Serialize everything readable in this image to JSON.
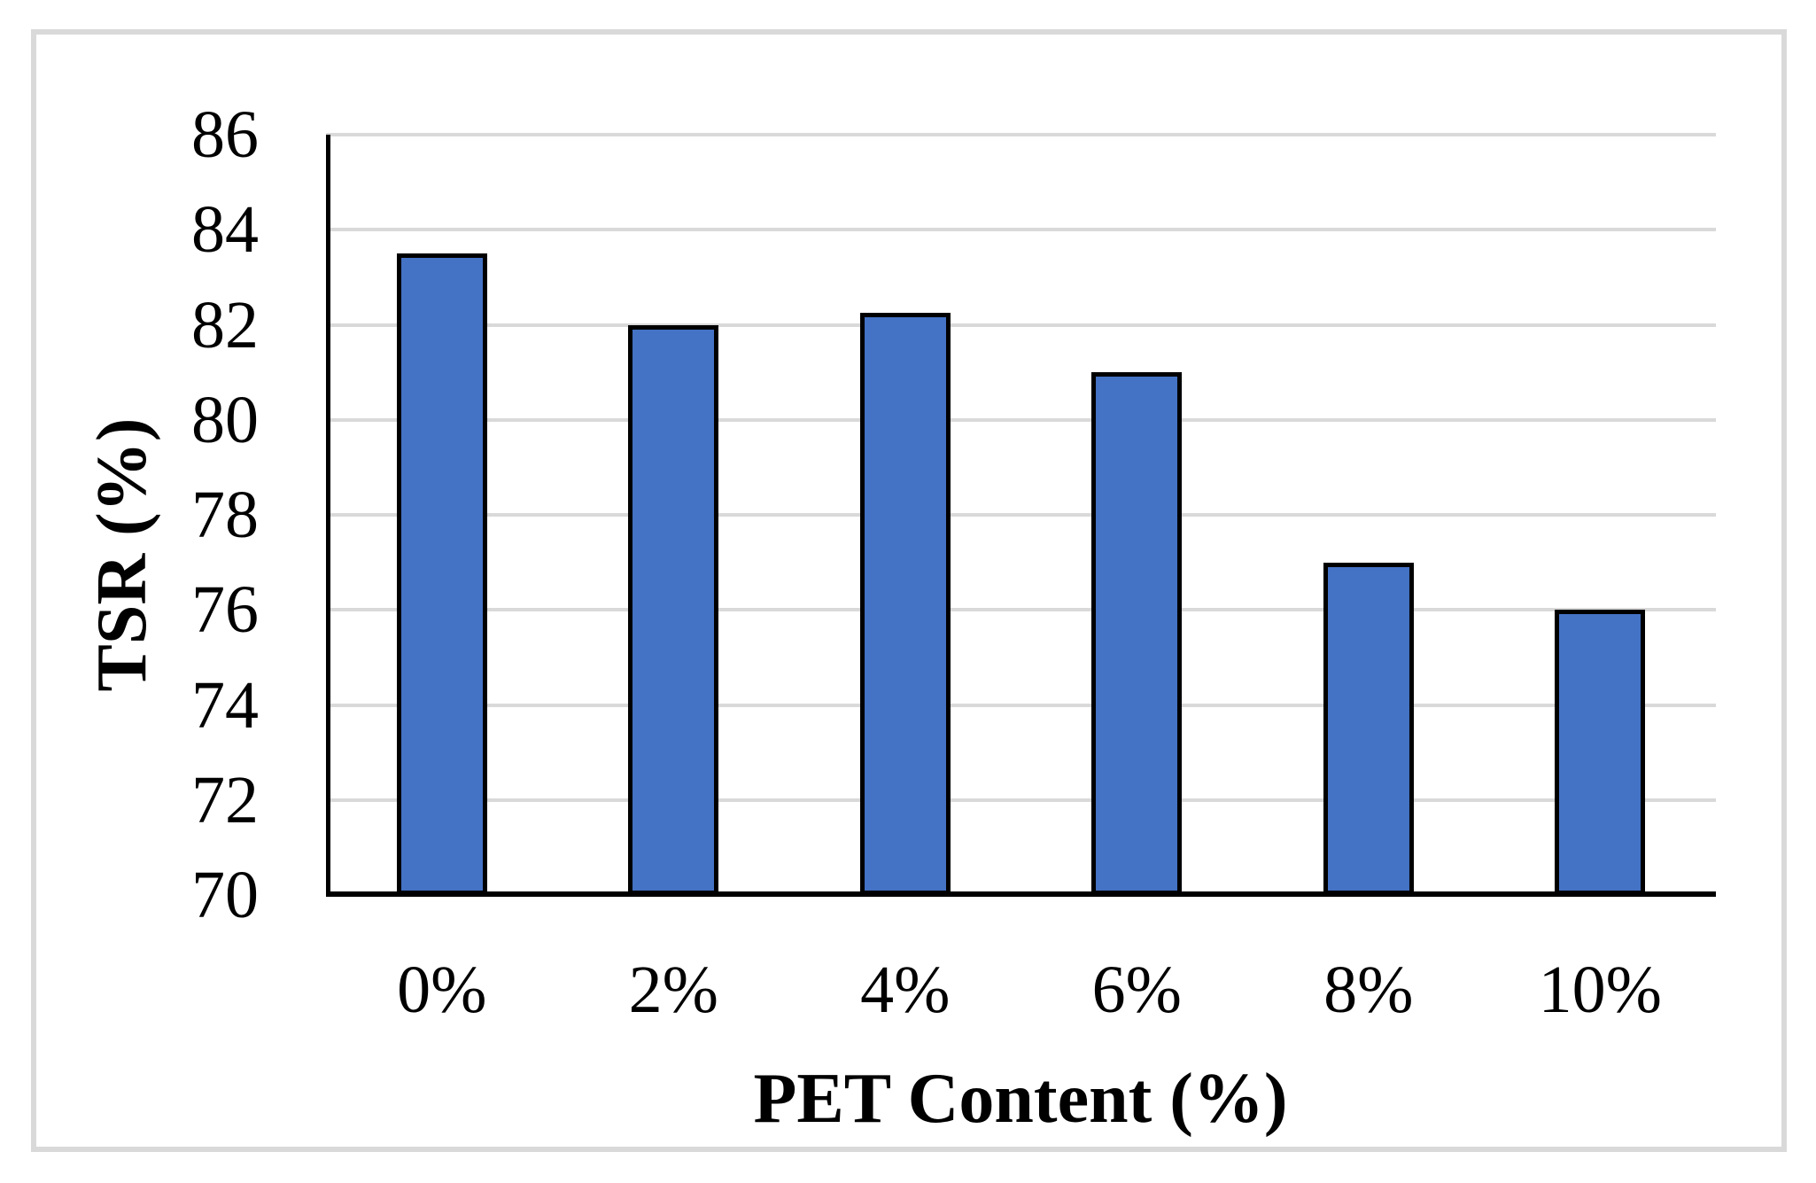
{
  "chart_data": {
    "type": "bar",
    "categories": [
      "0%",
      "2%",
      "4%",
      "6%",
      "8%",
      "10%"
    ],
    "values": [
      83.5,
      82,
      82.25,
      81,
      77,
      76
    ],
    "title": "",
    "xlabel": "PET Content (%)",
    "ylabel": "TSR (%)",
    "ylim": [
      70,
      86
    ],
    "yticks": [
      70,
      72,
      74,
      76,
      78,
      80,
      82,
      84,
      86
    ],
    "grid": true,
    "legend": "none",
    "bar_color": "#4472c4",
    "bar_border_color": "#000000",
    "gridline_color": "#d9d9d9",
    "axis_color": "#000000",
    "frame_border_color": "#d9d9d9"
  }
}
